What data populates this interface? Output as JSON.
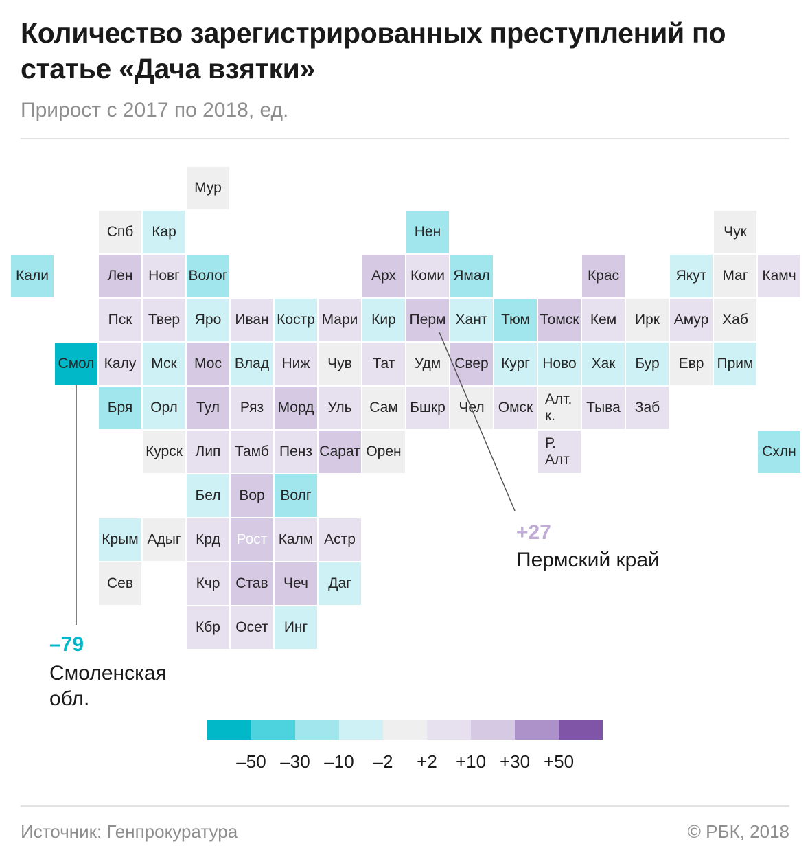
{
  "header": {
    "title": "Количество зарегистрированных преступлений по статье «Дача взятки»",
    "subtitle": "Прирост с 2017 по 2018, ед."
  },
  "colors": {
    "t5": "#00b8c8",
    "t4": "#4dd3dd",
    "t3": "#a0e6ec",
    "t2": "#cdf1f4",
    "n": "#efefef",
    "p1": "#e7e0ef",
    "p2": "#d5c9e3",
    "p3": "#ac92c8",
    "p4": "#8055a8"
  },
  "chart_data": {
    "type": "heatmap",
    "title": "Количество зарегистрированных преступлений по статье «Дача взятки»",
    "subtitle": "Прирост с 2017 по 2018, ед.",
    "legend": {
      "bins": [
        "t5",
        "t4",
        "t3",
        "t2",
        "n",
        "p1",
        "p2",
        "p3",
        "p4"
      ],
      "labels": [
        "–50",
        "–30",
        "–10",
        "–2",
        "+2",
        "+10",
        "+30",
        "+50"
      ]
    },
    "regions": [
      {
        "label": "Мур",
        "col": 4,
        "row": 0,
        "bin": "n"
      },
      {
        "label": "Спб",
        "col": 2,
        "row": 1,
        "bin": "n"
      },
      {
        "label": "Кар",
        "col": 3,
        "row": 1,
        "bin": "t2"
      },
      {
        "label": "Нен",
        "col": 9,
        "row": 1,
        "bin": "t3"
      },
      {
        "label": "Чук",
        "col": 16,
        "row": 1,
        "bin": "n"
      },
      {
        "label": "Кали",
        "col": 0,
        "row": 2,
        "bin": "t3"
      },
      {
        "label": "Лен",
        "col": 2,
        "row": 2,
        "bin": "p2"
      },
      {
        "label": "Новг",
        "col": 3,
        "row": 2,
        "bin": "p1"
      },
      {
        "label": "Волог",
        "col": 4,
        "row": 2,
        "bin": "t3"
      },
      {
        "label": "Арх",
        "col": 8,
        "row": 2,
        "bin": "p2"
      },
      {
        "label": "Коми",
        "col": 9,
        "row": 2,
        "bin": "p1"
      },
      {
        "label": "Ямал",
        "col": 10,
        "row": 2,
        "bin": "t3"
      },
      {
        "label": "Крас",
        "col": 13,
        "row": 2,
        "bin": "p2"
      },
      {
        "label": "Якут",
        "col": 15,
        "row": 2,
        "bin": "t2"
      },
      {
        "label": "Маг",
        "col": 16,
        "row": 2,
        "bin": "n"
      },
      {
        "label": "Камч",
        "col": 17,
        "row": 2,
        "bin": "p1"
      },
      {
        "label": "Пск",
        "col": 2,
        "row": 3,
        "bin": "p1"
      },
      {
        "label": "Твер",
        "col": 3,
        "row": 3,
        "bin": "p1"
      },
      {
        "label": "Яро",
        "col": 4,
        "row": 3,
        "bin": "t2"
      },
      {
        "label": "Иван",
        "col": 5,
        "row": 3,
        "bin": "p1"
      },
      {
        "label": "Костр",
        "col": 6,
        "row": 3,
        "bin": "t2"
      },
      {
        "label": "Мари",
        "col": 7,
        "row": 3,
        "bin": "p1"
      },
      {
        "label": "Кир",
        "col": 8,
        "row": 3,
        "bin": "t2"
      },
      {
        "label": "Перм",
        "col": 9,
        "row": 3,
        "bin": "p2"
      },
      {
        "label": "Хант",
        "col": 10,
        "row": 3,
        "bin": "t2"
      },
      {
        "label": "Тюм",
        "col": 11,
        "row": 3,
        "bin": "t3"
      },
      {
        "label": "Томск",
        "col": 12,
        "row": 3,
        "bin": "p2"
      },
      {
        "label": "Кем",
        "col": 13,
        "row": 3,
        "bin": "p1"
      },
      {
        "label": "Ирк",
        "col": 14,
        "row": 3,
        "bin": "n"
      },
      {
        "label": "Амур",
        "col": 15,
        "row": 3,
        "bin": "p1"
      },
      {
        "label": "Хаб",
        "col": 16,
        "row": 3,
        "bin": "n"
      },
      {
        "label": "Смол",
        "col": 1,
        "row": 4,
        "bin": "t5"
      },
      {
        "label": "Калу",
        "col": 2,
        "row": 4,
        "bin": "p1"
      },
      {
        "label": "Мск",
        "col": 3,
        "row": 4,
        "bin": "t2"
      },
      {
        "label": "Мос",
        "col": 4,
        "row": 4,
        "bin": "p2"
      },
      {
        "label": "Влад",
        "col": 5,
        "row": 4,
        "bin": "t2"
      },
      {
        "label": "Ниж",
        "col": 6,
        "row": 4,
        "bin": "p1"
      },
      {
        "label": "Чув",
        "col": 7,
        "row": 4,
        "bin": "n"
      },
      {
        "label": "Тат",
        "col": 8,
        "row": 4,
        "bin": "p1"
      },
      {
        "label": "Удм",
        "col": 9,
        "row": 4,
        "bin": "n"
      },
      {
        "label": "Свер",
        "col": 10,
        "row": 4,
        "bin": "p2"
      },
      {
        "label": "Кург",
        "col": 11,
        "row": 4,
        "bin": "t2"
      },
      {
        "label": "Ново",
        "col": 12,
        "row": 4,
        "bin": "t2"
      },
      {
        "label": "Хак",
        "col": 13,
        "row": 4,
        "bin": "t2"
      },
      {
        "label": "Бур",
        "col": 14,
        "row": 4,
        "bin": "t2"
      },
      {
        "label": "Евр",
        "col": 15,
        "row": 4,
        "bin": "n"
      },
      {
        "label": "Прим",
        "col": 16,
        "row": 4,
        "bin": "t2"
      },
      {
        "label": "Бря",
        "col": 2,
        "row": 5,
        "bin": "t3"
      },
      {
        "label": "Орл",
        "col": 3,
        "row": 5,
        "bin": "t2"
      },
      {
        "label": "Тул",
        "col": 4,
        "row": 5,
        "bin": "p2"
      },
      {
        "label": "Ряз",
        "col": 5,
        "row": 5,
        "bin": "p1"
      },
      {
        "label": "Морд",
        "col": 6,
        "row": 5,
        "bin": "p2"
      },
      {
        "label": "Уль",
        "col": 7,
        "row": 5,
        "bin": "p1"
      },
      {
        "label": "Сам",
        "col": 8,
        "row": 5,
        "bin": "n"
      },
      {
        "label": "Бшкр",
        "col": 9,
        "row": 5,
        "bin": "p1"
      },
      {
        "label": "Чел",
        "col": 10,
        "row": 5,
        "bin": "n"
      },
      {
        "label": "Омск",
        "col": 11,
        "row": 5,
        "bin": "p1"
      },
      {
        "label": "Алт. к.",
        "col": 12,
        "row": 5,
        "bin": "n"
      },
      {
        "label": "Тыва",
        "col": 13,
        "row": 5,
        "bin": "p1"
      },
      {
        "label": "Заб",
        "col": 14,
        "row": 5,
        "bin": "p1"
      },
      {
        "label": "Курск",
        "col": 3,
        "row": 6,
        "bin": "n"
      },
      {
        "label": "Лип",
        "col": 4,
        "row": 6,
        "bin": "p1"
      },
      {
        "label": "Тамб",
        "col": 5,
        "row": 6,
        "bin": "p1"
      },
      {
        "label": "Пенз",
        "col": 6,
        "row": 6,
        "bin": "p1"
      },
      {
        "label": "Сарат",
        "col": 7,
        "row": 6,
        "bin": "p2"
      },
      {
        "label": "Орен",
        "col": 8,
        "row": 6,
        "bin": "n"
      },
      {
        "label": "Р. Алт",
        "col": 12,
        "row": 6,
        "bin": "p1"
      },
      {
        "label": "Схлн",
        "col": 17,
        "row": 6,
        "bin": "t3"
      },
      {
        "label": "Бел",
        "col": 4,
        "row": 7,
        "bin": "t2"
      },
      {
        "label": "Вор",
        "col": 5,
        "row": 7,
        "bin": "p2"
      },
      {
        "label": "Волг",
        "col": 6,
        "row": 7,
        "bin": "t3"
      },
      {
        "label": "Крым",
        "col": 2,
        "row": 8,
        "bin": "t2"
      },
      {
        "label": "Адыг",
        "col": 3,
        "row": 8,
        "bin": "n"
      },
      {
        "label": "Крд",
        "col": 4,
        "row": 8,
        "bin": "p1"
      },
      {
        "label": "Рост",
        "col": 5,
        "row": 8,
        "bin": "p2",
        "light": true
      },
      {
        "label": "Калм",
        "col": 6,
        "row": 8,
        "bin": "p1"
      },
      {
        "label": "Астр",
        "col": 7,
        "row": 8,
        "bin": "p1"
      },
      {
        "label": "Сев",
        "col": 2,
        "row": 9,
        "bin": "n"
      },
      {
        "label": "Кчр",
        "col": 4,
        "row": 9,
        "bin": "p1"
      },
      {
        "label": "Став",
        "col": 5,
        "row": 9,
        "bin": "p2"
      },
      {
        "label": "Чеч",
        "col": 6,
        "row": 9,
        "bin": "p2"
      },
      {
        "label": "Даг",
        "col": 7,
        "row": 9,
        "bin": "t2"
      },
      {
        "label": "Кбр",
        "col": 4,
        "row": 10,
        "bin": "p1"
      },
      {
        "label": "Осет",
        "col": 5,
        "row": 10,
        "bin": "p1"
      },
      {
        "label": "Инг",
        "col": 6,
        "row": 10,
        "bin": "t2"
      }
    ],
    "annotations": [
      {
        "region": "Смол",
        "value": "–79",
        "name": "Смоленская обл.",
        "color": "#00b8c8"
      },
      {
        "region": "Перм",
        "value": "+27",
        "name": "Пермский край",
        "color": "#c1acd8"
      }
    ]
  },
  "footer": {
    "source": "Источник: Генпрокуратура",
    "copyright": "© РБК, 2018"
  }
}
